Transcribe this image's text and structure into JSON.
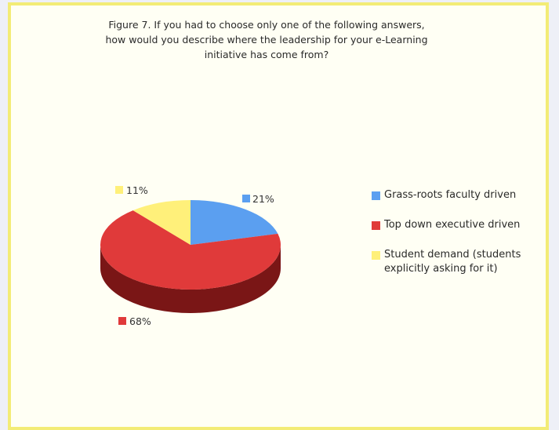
{
  "title": "Figure 7. If you had to choose only one of the following answers,\nhow would you describe where the leadership for your e-Learning\ninitiative has come from?",
  "chart_data": {
    "type": "pie",
    "title": "Figure 7. If you had to choose only one of the following answers, how would you describe where the leadership for your e-Learning initiative has come from?",
    "style": "3d",
    "legend_position": "right",
    "slices": [
      {
        "name": "Grass-roots faculty driven",
        "value": 21,
        "label": "21%",
        "color": "#5b9ff0",
        "dark": "#2d5f9e"
      },
      {
        "name": "Top down executive driven",
        "value": 68,
        "label": "68%",
        "color": "#e03a3a",
        "dark": "#7a1616"
      },
      {
        "name": "Student demand (students explicitly asking for it)",
        "value": 11,
        "label": "11%",
        "color": "#fff07a",
        "dark": "#b3a542"
      }
    ]
  }
}
